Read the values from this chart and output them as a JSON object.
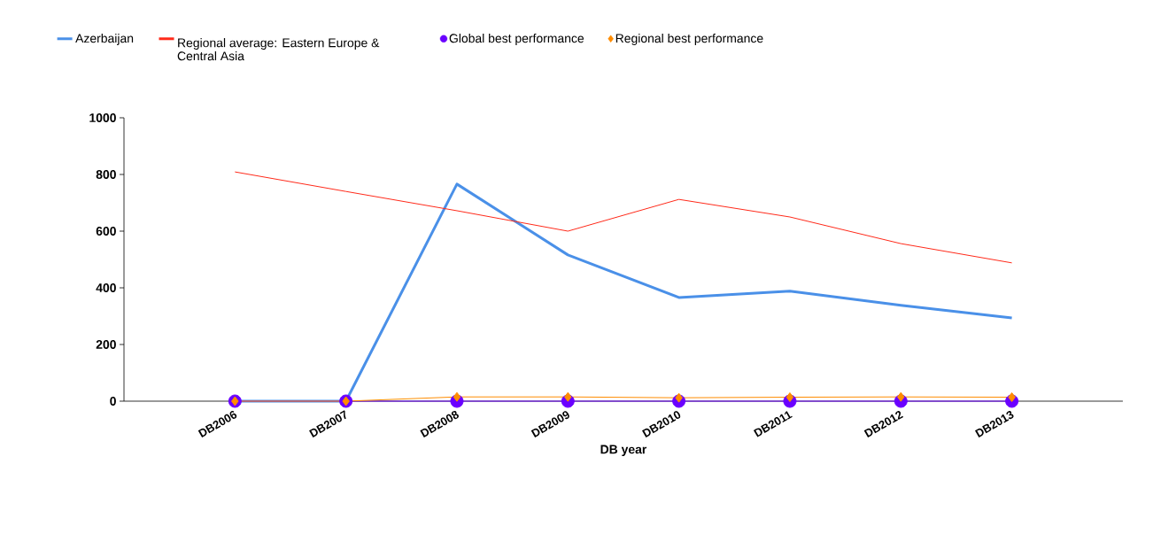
{
  "chart_data": {
    "type": "line",
    "xlabel": "DB year",
    "categories": [
      "DB2006",
      "DB2007",
      "DB2008",
      "DB2009",
      "DB2010",
      "DB2011",
      "DB2012",
      "DB2013"
    ],
    "series": [
      {
        "name": "Azerbaijan",
        "color": "#4a90e8",
        "values": [
          0,
          0,
          766,
          516,
          366,
          388,
          338,
          294
        ]
      },
      {
        "name": "Regional average: Eastern Europe & Central Asia",
        "color": "#ff2a1a",
        "values": [
          809,
          740,
          672,
          600,
          712,
          650,
          556,
          488
        ]
      },
      {
        "name": "Global best performance",
        "color": "#6a00ff",
        "marker": "circle",
        "values": [
          0,
          0,
          0,
          0,
          0,
          0,
          0,
          0
        ]
      },
      {
        "name": "Regional best performance",
        "color": "#ff8c00",
        "marker": "diamond",
        "values": [
          0,
          0,
          15,
          15,
          12,
          14,
          15,
          14
        ]
      }
    ],
    "ylim": [
      0,
      1000
    ],
    "yticks": [
      0,
      200,
      400,
      600,
      800,
      1000
    ],
    "legend": "top",
    "grid": false
  }
}
